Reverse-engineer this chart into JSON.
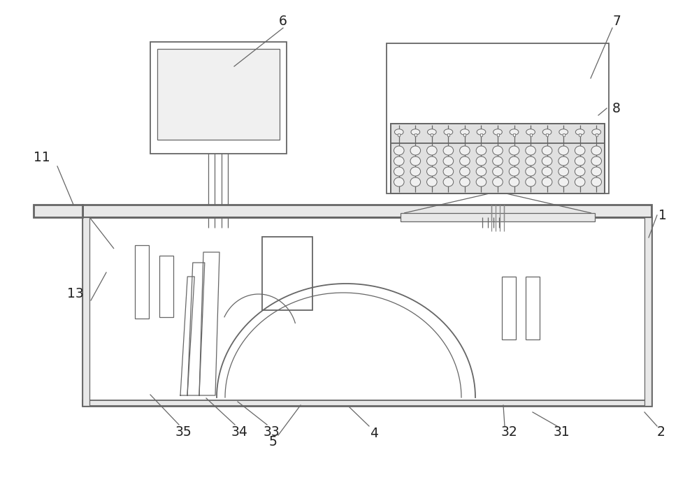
{
  "bg_color": "#ffffff",
  "lc": "#666666",
  "lc_dark": "#444444"
}
